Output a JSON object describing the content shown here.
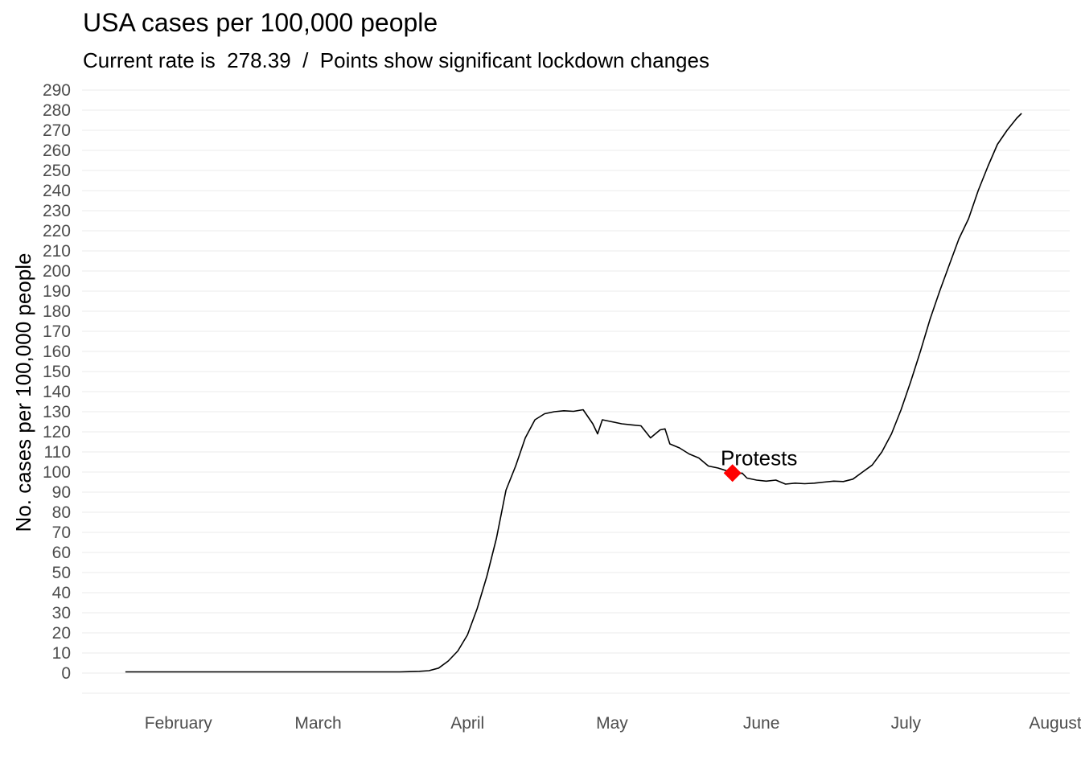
{
  "chart_data": {
    "type": "line",
    "title": "USA cases per 100,000 people",
    "subtitle": "Current rate is  278.39  /  Points show significant lockdown changes",
    "xlabel": "",
    "ylabel": "No. cases per 100,000 people",
    "x_ticks": [
      {
        "label": "February",
        "day": 0
      },
      {
        "label": "March",
        "day": 29
      },
      {
        "label": "April",
        "day": 60
      },
      {
        "label": "May",
        "day": 90
      },
      {
        "label": "June",
        "day": 121
      },
      {
        "label": "July",
        "day": 151
      },
      {
        "label": "August",
        "day": 182
      }
    ],
    "xlim_days": [
      -20,
      185
    ],
    "ylim": [
      -10,
      290
    ],
    "y_ticks": [
      0,
      10,
      20,
      30,
      40,
      50,
      60,
      70,
      80,
      90,
      100,
      110,
      120,
      130,
      140,
      150,
      160,
      170,
      180,
      190,
      200,
      210,
      220,
      230,
      240,
      250,
      260,
      270,
      280,
      290
    ],
    "series": [
      {
        "color": "#000000",
        "points": [
          [
            -11,
            0.6
          ],
          [
            0,
            0.6
          ],
          [
            20,
            0.6
          ],
          [
            40,
            0.6
          ],
          [
            46,
            0.6
          ],
          [
            50,
            0.9
          ],
          [
            52,
            1.2
          ],
          [
            54,
            2.5
          ],
          [
            56,
            6
          ],
          [
            58,
            11
          ],
          [
            60,
            19
          ],
          [
            62,
            32
          ],
          [
            64,
            48
          ],
          [
            66,
            67
          ],
          [
            68,
            91
          ],
          [
            70,
            103
          ],
          [
            72,
            117
          ],
          [
            74,
            126
          ],
          [
            76,
            129
          ],
          [
            78,
            130
          ],
          [
            80,
            130.5
          ],
          [
            82,
            130.2
          ],
          [
            84,
            131
          ],
          [
            86,
            124
          ],
          [
            87,
            119
          ],
          [
            88,
            126
          ],
          [
            90,
            125
          ],
          [
            92,
            124
          ],
          [
            94,
            123.5
          ],
          [
            96,
            123
          ],
          [
            98,
            117
          ],
          [
            100,
            121
          ],
          [
            101,
            121.5
          ],
          [
            102,
            114
          ],
          [
            104,
            112
          ],
          [
            106,
            109
          ],
          [
            108,
            107
          ],
          [
            110,
            103
          ],
          [
            112,
            102
          ],
          [
            114,
            100.5
          ],
          [
            116,
            99
          ],
          [
            117,
            99.5
          ],
          [
            118,
            97
          ],
          [
            120,
            96
          ],
          [
            122,
            95.5
          ],
          [
            124,
            96
          ],
          [
            126,
            94
          ],
          [
            128,
            94.5
          ],
          [
            130,
            94.2
          ],
          [
            132,
            94.5
          ],
          [
            134,
            95
          ],
          [
            136,
            95.5
          ],
          [
            138,
            95.3
          ],
          [
            140,
            96.5
          ],
          [
            142,
            100
          ],
          [
            144,
            103.5
          ],
          [
            146,
            110
          ],
          [
            148,
            119
          ],
          [
            150,
            131
          ],
          [
            152,
            145
          ],
          [
            154,
            160
          ],
          [
            156,
            176
          ],
          [
            158,
            190
          ],
          [
            160,
            203
          ],
          [
            162,
            216
          ],
          [
            164,
            226
          ],
          [
            166,
            240
          ],
          [
            168,
            252
          ],
          [
            170,
            263
          ],
          [
            172,
            270
          ],
          [
            174,
            276
          ],
          [
            175,
            278.4
          ]
        ]
      }
    ],
    "annotations": [
      {
        "label": "Protests",
        "day": 115,
        "value": 99.5,
        "marker": "diamond",
        "color": "#ff0000"
      }
    ],
    "grid": "horizontal",
    "legend": "none"
  }
}
